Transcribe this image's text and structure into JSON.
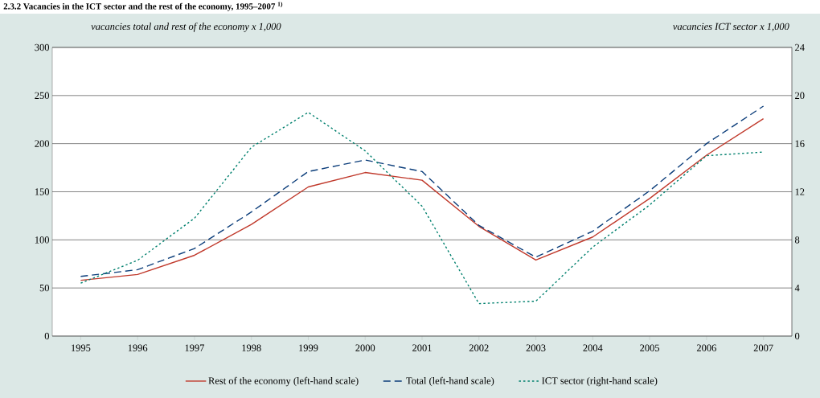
{
  "chart_data": {
    "type": "line",
    "title": "2.3.2  Vacancies in the ICT sector and the rest of the economy, 1995–2007 $^{1)}$",
    "ylabel": "vacancies total and rest of the economy x 1,000",
    "y2label": "vacancies ICT sector x 1,000",
    "categories": [
      "1995",
      "1996",
      "1997",
      "1998",
      "1999",
      "2000",
      "2001",
      "2002",
      "2003",
      "2004",
      "2005",
      "2006",
      "2007"
    ],
    "series": [
      {
        "name": "Rest of the economy (left-hand scale)",
        "color": "#c0392b",
        "line_style": "solid",
        "values": [
          58,
          64,
          84,
          116,
          155,
          170,
          162,
          114,
          79,
          103,
          143,
          188,
          226
        ]
      },
      {
        "name": "Total (left-hand scale)",
        "color": "#0b3d7a",
        "line_style": "dashed",
        "values": [
          62,
          69,
          91,
          129,
          171,
          183,
          171,
          115,
          82,
          109,
          151,
          200,
          239
        ]
      },
      {
        "name": "ICT sector (right-hand scale)",
        "color": "#00806e",
        "line_style": "dotted",
        "axis": "y2",
        "values": [
          4.4,
          6.3,
          9.8,
          15.7,
          18.6,
          15.4,
          10.8,
          2.7,
          2.9,
          7.4,
          10.9,
          15.0,
          15.3
        ]
      }
    ],
    "ylim": [
      0,
      300
    ],
    "yticks": [
      0,
      50,
      100,
      150,
      200,
      250,
      300
    ],
    "y2lim": [
      0,
      24
    ],
    "y2ticks": [
      0,
      4,
      8,
      12,
      16,
      20,
      24
    ],
    "grid": "y",
    "legend": "bottom",
    "marker": "none"
  }
}
